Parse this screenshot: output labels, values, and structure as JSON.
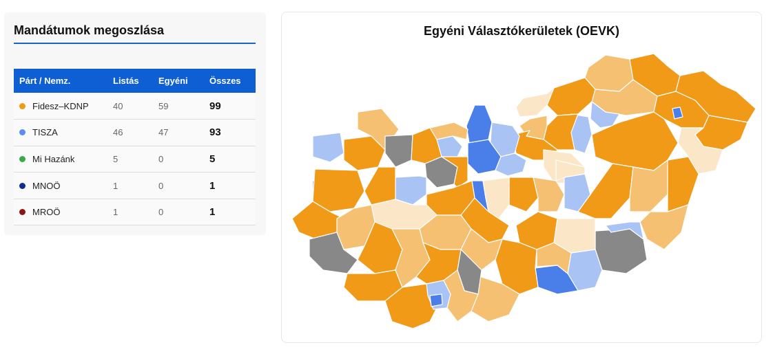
{
  "seats_panel": {
    "title": "Mandátumok megoszlása",
    "headers": {
      "party": "Párt / Nemz.",
      "list": "Listás",
      "individual": "Egyéni",
      "total": "Összes"
    },
    "rows": [
      {
        "party": "Fidesz–KDNP",
        "color": "#f09a17",
        "list": "40",
        "individual": "59",
        "total": "99"
      },
      {
        "party": "TISZA",
        "color": "#5b8cf0",
        "list": "46",
        "individual": "47",
        "total": "93"
      },
      {
        "party": "Mi Hazánk",
        "color": "#3aa84c",
        "list": "5",
        "individual": "0",
        "total": "5"
      },
      {
        "party": "MNOÖ",
        "color": "#0d2d8f",
        "list": "1",
        "individual": "0",
        "total": "1"
      },
      {
        "party": "MROÖ",
        "color": "#8b1414",
        "list": "1",
        "individual": "0",
        "total": "1"
      }
    ]
  },
  "map_panel": {
    "title": "Egyéni Választókerületek (OEVK)",
    "fill_colors": {
      "fidesz_strong": "#f09a17",
      "fidesz_medium": "#f5c072",
      "fidesz_light": "#fbe6c8",
      "tisza_strong": "#4a7ee8",
      "tisza_light": "#a9c3f5",
      "undecided": "#888888"
    }
  }
}
